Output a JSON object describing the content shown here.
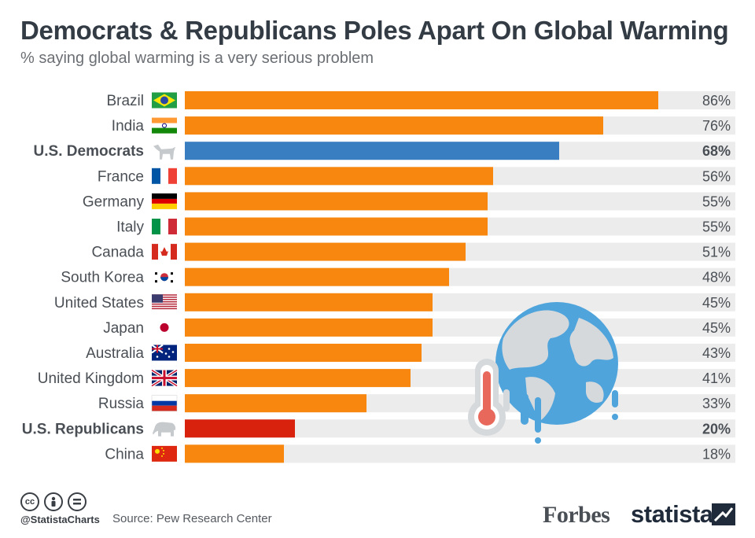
{
  "title": "Democrats & Republicans Poles Apart On Global Warming",
  "subtitle": "% saying global warming is a very serious problem",
  "chart_data": {
    "type": "bar",
    "orientation": "horizontal",
    "categories": [
      "Brazil",
      "India",
      "U.S. Democrats",
      "France",
      "Germany",
      "Italy",
      "Canada",
      "South Korea",
      "United States",
      "Japan",
      "Australia",
      "United Kingdom",
      "Russia",
      "U.S. Republicans",
      "China"
    ],
    "values": [
      86,
      76,
      68,
      56,
      55,
      55,
      51,
      48,
      45,
      45,
      43,
      41,
      33,
      20,
      18
    ],
    "value_labels": [
      "86%",
      "76%",
      "68%",
      "56%",
      "55%",
      "55%",
      "51%",
      "48%",
      "45%",
      "45%",
      "43%",
      "41%",
      "33%",
      "20%",
      "18%"
    ],
    "bold_rows": [
      "U.S. Democrats",
      "U.S. Republicans"
    ],
    "xlim": [
      0,
      100
    ],
    "icons": [
      "brazil-flag-icon",
      "india-flag-icon",
      "donkey-icon",
      "france-flag-icon",
      "germany-flag-icon",
      "italy-flag-icon",
      "canada-flag-icon",
      "south-korea-flag-icon",
      "usa-flag-icon",
      "japan-flag-icon",
      "australia-flag-icon",
      "uk-flag-icon",
      "russia-flag-icon",
      "elephant-icon",
      "china-flag-icon"
    ],
    "colors": {
      "default": "#f7870f",
      "U.S. Democrats": "#3a7ec2",
      "U.S. Republicans": "#d9220e",
      "track": "#ececec",
      "label": "#4a4f55"
    }
  },
  "footer": {
    "handle": "@StatistaCharts",
    "source": "Source: Pew Research Center",
    "forbes": "Forbes",
    "statista": "statista"
  }
}
